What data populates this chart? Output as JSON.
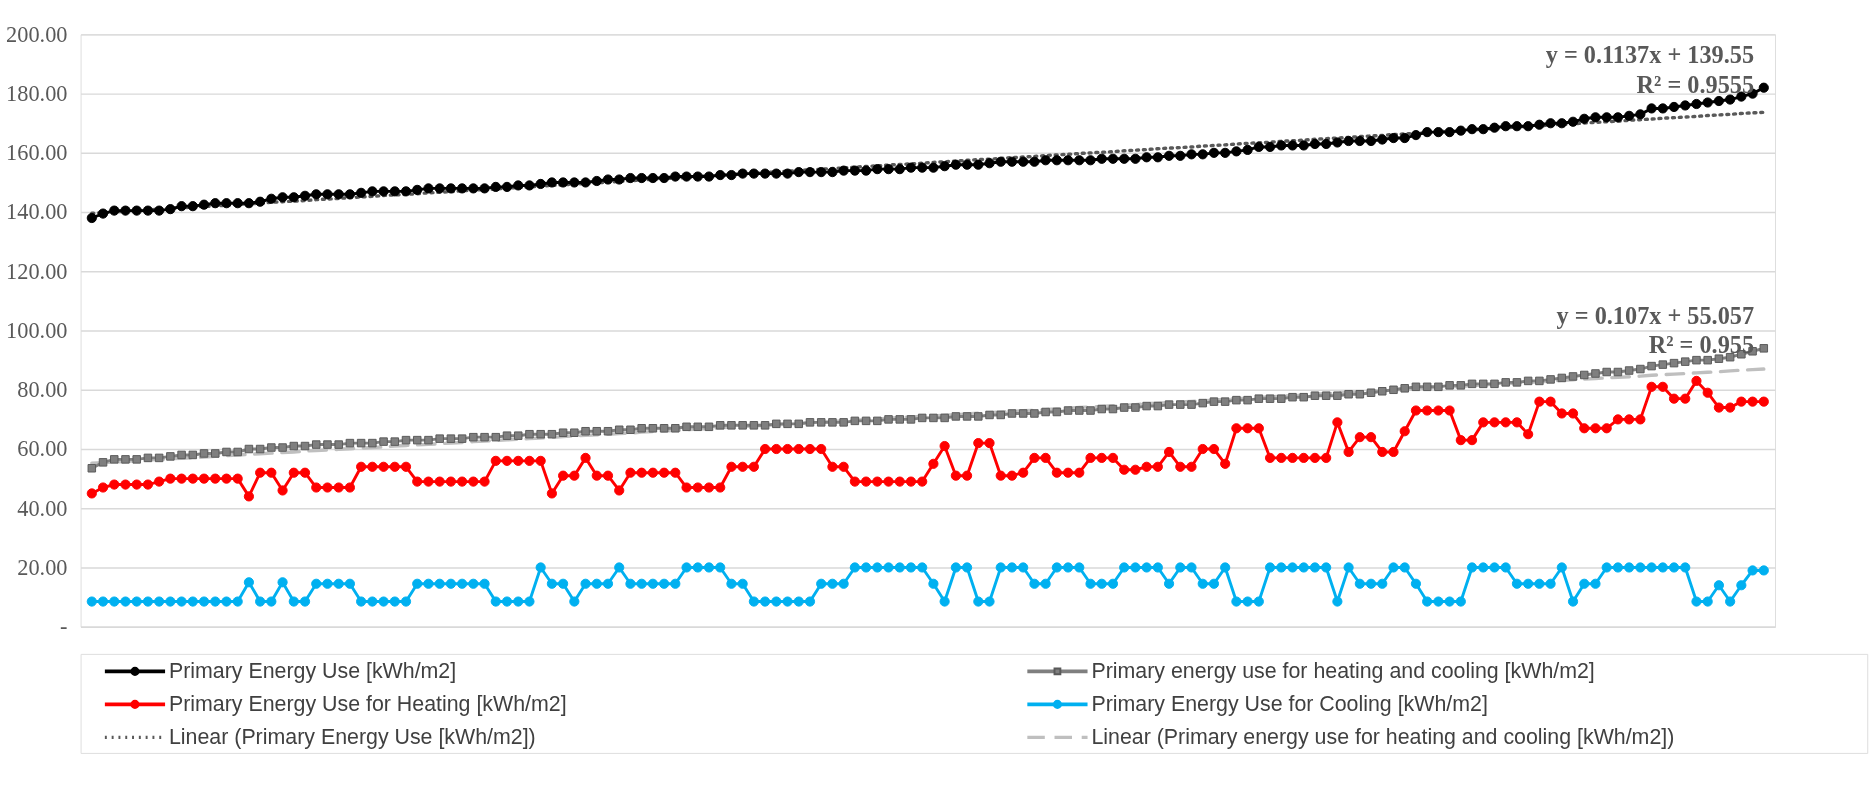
{
  "chart_data": {
    "type": "line",
    "categories": [
      null,
      null,
      null,
      null,
      null,
      null,
      null,
      null,
      null,
      null,
      null,
      null,
      null,
      null,
      null,
      null,
      null,
      null,
      null,
      null,
      null,
      null,
      null,
      null,
      null,
      null,
      null,
      null,
      null,
      null,
      null,
      null,
      null,
      null,
      null,
      null,
      null,
      null,
      null,
      null,
      null,
      null,
      null,
      null,
      null,
      null,
      null,
      null,
      null,
      null,
      null,
      null,
      null,
      null,
      null,
      null,
      null,
      null,
      null,
      null,
      null,
      null,
      null,
      null,
      null,
      null,
      null,
      null,
      null,
      null,
      null,
      null,
      null,
      null,
      null,
      null,
      null,
      null,
      null,
      null,
      null,
      null,
      null,
      null,
      null,
      null,
      null,
      null,
      null,
      null,
      null,
      null,
      null,
      null,
      null,
      null,
      null,
      null,
      null,
      null,
      null,
      null,
      null,
      null,
      null,
      null,
      null,
      null,
      null,
      null,
      null,
      null,
      null,
      null,
      null,
      null,
      null,
      null,
      null,
      null,
      null,
      null,
      null,
      null,
      null,
      null,
      null,
      null,
      null,
      null,
      null,
      null,
      null,
      null,
      null,
      null,
      null,
      null,
      null,
      null,
      null,
      null,
      null,
      null,
      null,
      null,
      null,
      null,
      null,
      null
    ],
    "ylim": [
      0,
      200
    ],
    "yticks": [
      {
        "value": 0,
        "label": "-"
      },
      {
        "value": 20,
        "label": "20.00"
      },
      {
        "value": 40,
        "label": "40.00"
      },
      {
        "value": 60,
        "label": "60.00"
      },
      {
        "value": 80,
        "label": "80.00"
      },
      {
        "value": 100,
        "label": "100.00"
      },
      {
        "value": 120,
        "label": "120.00"
      },
      {
        "value": 140,
        "label": "140.00"
      },
      {
        "value": 160,
        "label": "160.00"
      },
      {
        "value": 180,
        "label": "180.00"
      },
      {
        "value": 200,
        "label": "200.00"
      }
    ],
    "grid": "y",
    "legend": "bottom",
    "tick_labels": "y",
    "series": [
      {
        "name": "Primary Energy Use [kWh/m2]",
        "color": "#000000",
        "marker": "circle",
        "values": [
          138,
          139.5,
          140.5,
          140.5,
          140.5,
          140.5,
          140.5,
          141,
          142,
          142,
          142.5,
          143,
          143,
          143,
          143,
          143.5,
          144.5,
          145,
          145,
          145.5,
          146,
          146,
          146,
          146,
          146.5,
          147,
          147,
          147,
          147,
          147.5,
          148,
          148,
          148,
          148,
          148,
          148,
          148.5,
          148.5,
          149,
          149,
          149.5,
          150,
          150,
          150,
          150,
          150.5,
          151,
          151,
          151.5,
          151.5,
          151.5,
          151.5,
          152,
          152,
          152,
          152,
          152.5,
          152.5,
          153,
          153,
          153,
          153,
          153,
          153.5,
          153.5,
          153.5,
          153.5,
          154,
          154,
          154,
          154.5,
          154.5,
          154.5,
          155,
          155,
          155,
          155.5,
          156,
          156,
          156,
          156.5,
          157,
          157,
          157,
          157,
          157.5,
          157.5,
          157.5,
          157.5,
          157.5,
          158,
          158,
          158,
          158,
          158.5,
          158.5,
          159,
          159,
          159.5,
          159.5,
          160,
          160,
          160.5,
          161,
          162,
          162,
          162.5,
          162.5,
          162.5,
          163,
          163,
          163.5,
          164,
          164,
          164,
          164.5,
          165,
          165,
          166,
          167,
          167,
          167,
          167.5,
          168,
          168,
          168.5,
          169,
          169,
          169,
          169.5,
          170,
          170,
          170.5,
          171.5,
          172,
          172,
          172,
          172.5,
          173,
          175,
          175,
          175.5,
          176,
          176.5,
          177,
          177.5,
          178,
          179,
          180,
          182
        ]
      },
      {
        "name": "Primary energy use for heating and cooling [kWh/m2]",
        "color": "#7f7f7f",
        "marker": "square",
        "values": [
          53.5,
          55.5,
          56.5,
          56.5,
          56.5,
          57,
          57,
          57.5,
          58,
          58,
          58.5,
          58.5,
          59,
          59,
          60,
          60,
          60.5,
          60.5,
          61,
          61,
          61.5,
          61.5,
          61.5,
          62,
          62,
          62,
          62.5,
          62.5,
          63,
          63,
          63,
          63.5,
          63.5,
          63.5,
          64,
          64,
          64,
          64.5,
          64.5,
          65,
          65,
          65,
          65.5,
          65.5,
          66,
          66,
          66,
          66.5,
          66.5,
          67,
          67,
          67,
          67,
          67.5,
          67.5,
          67.5,
          68,
          68,
          68,
          68,
          68,
          68.5,
          68.5,
          68.5,
          69,
          69,
          69,
          69,
          69.5,
          69.5,
          69.5,
          70,
          70,
          70,
          70.5,
          70.5,
          70.5,
          71,
          71,
          71,
          71.5,
          71.5,
          72,
          72,
          72,
          72.5,
          72.5,
          73,
          73,
          73,
          73.5,
          73.5,
          74,
          74,
          74.5,
          74.5,
          75,
          75,
          75,
          75.5,
          76,
          76,
          76.5,
          76.5,
          77,
          77,
          77,
          77.5,
          77.5,
          78,
          78,
          78,
          78.5,
          78.5,
          79,
          79.5,
          80,
          80.5,
          81,
          81,
          81,
          81.5,
          81.5,
          82,
          82,
          82,
          82.5,
          82.5,
          83,
          83,
          83.5,
          84,
          84.5,
          85,
          85.5,
          86,
          86,
          86.5,
          87,
          88,
          88.5,
          89,
          89.5,
          90,
          90,
          90.5,
          91,
          92,
          93,
          94
        ]
      },
      {
        "name": "Primary Energy Use for Heating [kWh/m2]",
        "color": "#ff0000",
        "marker": "circle",
        "values": [
          45,
          47,
          48,
          48,
          48,
          48,
          49,
          50,
          50,
          50,
          50,
          50,
          50,
          50,
          44,
          52,
          52,
          46,
          52,
          52,
          47,
          47,
          47,
          47,
          54,
          54,
          54,
          54,
          54,
          49,
          49,
          49,
          49,
          49,
          49,
          49,
          56,
          56,
          56,
          56,
          56,
          45,
          51,
          51,
          57,
          51,
          51,
          46,
          52,
          52,
          52,
          52,
          52,
          47,
          47,
          47,
          47,
          54,
          54,
          54,
          60,
          60,
          60,
          60,
          60,
          60,
          54,
          54,
          49,
          49,
          49,
          49,
          49,
          49,
          49,
          55,
          61,
          51,
          51,
          62,
          62,
          51,
          51,
          52,
          57,
          57,
          52,
          52,
          52,
          57,
          57,
          57,
          53,
          53,
          54,
          54,
          59,
          54,
          54,
          60,
          60,
          55,
          67,
          67,
          67,
          57,
          57,
          57,
          57,
          57,
          57,
          69,
          59,
          64,
          64,
          59,
          59,
          66,
          73,
          73,
          73,
          73,
          63,
          63,
          69,
          69,
          69,
          69,
          65,
          76,
          76,
          72,
          72,
          67,
          67,
          67,
          70,
          70,
          70,
          81,
          81,
          77,
          77,
          83,
          79,
          74,
          74,
          76,
          76,
          76
        ]
      },
      {
        "name": "Primary Energy Use for Cooling [kWh/m2]",
        "color": "#00b0f0",
        "marker": "circle",
        "values": [
          8.5,
          8.5,
          8.5,
          8.5,
          8.5,
          8.5,
          8.5,
          8.5,
          8.5,
          8.5,
          8.5,
          8.5,
          8.5,
          8.5,
          15,
          8.5,
          8.5,
          15,
          8.5,
          8.5,
          14.5,
          14.5,
          14.5,
          14.5,
          8.5,
          8.5,
          8.5,
          8.5,
          8.5,
          14.5,
          14.5,
          14.5,
          14.5,
          14.5,
          14.5,
          14.5,
          8.5,
          8.5,
          8.5,
          8.5,
          20,
          14.5,
          14.5,
          8.5,
          14.5,
          14.5,
          14.5,
          20,
          14.5,
          14.5,
          14.5,
          14.5,
          14.5,
          20,
          20,
          20,
          20,
          14.5,
          14.5,
          8.5,
          8.5,
          8.5,
          8.5,
          8.5,
          8.5,
          14.5,
          14.5,
          14.5,
          20,
          20,
          20,
          20,
          20,
          20,
          20,
          14.5,
          8.5,
          20,
          20,
          8.5,
          8.5,
          20,
          20,
          20,
          14.5,
          14.5,
          20,
          20,
          20,
          14.5,
          14.5,
          14.5,
          20,
          20,
          20,
          20,
          14.5,
          20,
          20,
          14.5,
          14.5,
          20,
          8.5,
          8.5,
          8.5,
          20,
          20,
          20,
          20,
          20,
          20,
          8.5,
          20,
          14.5,
          14.5,
          14.5,
          20,
          20,
          14.5,
          8.5,
          8.5,
          8.5,
          8.5,
          20,
          20,
          20,
          20,
          14.5,
          14.5,
          14.5,
          14.5,
          20,
          8.5,
          14.5,
          14.5,
          20,
          20,
          20,
          20,
          20,
          20,
          20,
          20,
          8.5,
          8.5,
          14,
          8.5,
          14,
          19,
          19
        ]
      },
      {
        "name": "Linear (Primary Energy Use [kWh/m2])",
        "color": "#595959",
        "marker": "none",
        "line_style": "dotted",
        "values": [
          139.6,
          139.8,
          140.1,
          140.3,
          140.5,
          140.7,
          141.0,
          141.2,
          141.4,
          141.7,
          141.9,
          142.1,
          142.3,
          142.6,
          142.8,
          143.0,
          143.3,
          143.5,
          143.7,
          143.9,
          144.2,
          144.4,
          144.6,
          144.9,
          145.1,
          145.3,
          145.6,
          145.8,
          146.0,
          146.2,
          146.5,
          146.7,
          146.9,
          147.2,
          147.4,
          147.6,
          147.8,
          148.1,
          148.3,
          148.5,
          148.8,
          149.0,
          149.2,
          149.4,
          149.7,
          149.9,
          150.1,
          150.4,
          150.6,
          150.8,
          151.1,
          151.3,
          151.5,
          151.7,
          152.0,
          152.2,
          152.4,
          152.7,
          152.9,
          153.1,
          153.3,
          153.6,
          153.8,
          154.0,
          154.3,
          154.5,
          154.7,
          154.9,
          155.2,
          155.4,
          155.6,
          155.9,
          156.1,
          156.3,
          156.5,
          156.8,
          157.0,
          157.2,
          157.5,
          157.7,
          157.9,
          158.1,
          158.4,
          158.6,
          158.8,
          159.1,
          159.3,
          159.5,
          159.8,
          160.0,
          160.2,
          160.4,
          160.7,
          160.9,
          161.1,
          161.4,
          161.6,
          161.8,
          162.0,
          162.3,
          162.5,
          162.7,
          163.0,
          163.2,
          163.4,
          163.6,
          163.9,
          164.1,
          164.3,
          164.6,
          164.8,
          165.0,
          165.2,
          165.5,
          165.7,
          165.9,
          166.2,
          166.4,
          166.6,
          166.9,
          167.1,
          167.3,
          167.5,
          167.8,
          168.0,
          168.2,
          168.5,
          168.7,
          168.9,
          169.1,
          169.4,
          169.6,
          169.8,
          170.1,
          170.3,
          170.5,
          170.7,
          171.0,
          171.2,
          171.4,
          171.7,
          171.9,
          172.1,
          172.3,
          172.6,
          172.8,
          173.0,
          173.3,
          173.5,
          173.7
        ]
      },
      {
        "name": "Linear (Primary energy use for heating and cooling [kWh/m2])",
        "color": "#bfbfbf",
        "marker": "none",
        "line_style": "dashed",
        "values": [
          55.2,
          55.4,
          55.6,
          55.8,
          56.1,
          56.3,
          56.5,
          56.7,
          56.9,
          57.1,
          57.3,
          57.5,
          57.8,
          58.0,
          58.2,
          58.4,
          58.6,
          58.8,
          59.0,
          59.3,
          59.5,
          59.7,
          59.9,
          60.1,
          60.3,
          60.5,
          60.7,
          61.0,
          61.2,
          61.4,
          61.6,
          61.8,
          62.0,
          62.2,
          62.5,
          62.7,
          62.9,
          63.1,
          63.3,
          63.5,
          63.7,
          63.9,
          64.2,
          64.4,
          64.6,
          64.8,
          65.0,
          65.2,
          65.4,
          65.7,
          65.9,
          66.1,
          66.3,
          66.5,
          66.7,
          66.9,
          67.2,
          67.4,
          67.6,
          67.8,
          68.0,
          68.2,
          68.4,
          68.6,
          68.9,
          69.1,
          69.3,
          69.5,
          69.7,
          69.9,
          70.1,
          70.4,
          70.6,
          70.8,
          71.0,
          71.2,
          71.4,
          71.6,
          71.8,
          72.1,
          72.3,
          72.5,
          72.7,
          72.9,
          73.1,
          73.3,
          73.6,
          73.8,
          74.0,
          74.2,
          74.4,
          74.6,
          74.8,
          75.0,
          75.3,
          75.5,
          75.7,
          75.9,
          76.1,
          76.3,
          76.5,
          76.8,
          77.0,
          77.2,
          77.4,
          77.6,
          77.8,
          78.0,
          78.2,
          78.5,
          78.7,
          78.9,
          79.1,
          79.3,
          79.5,
          79.7,
          80.0,
          80.2,
          80.4,
          80.6,
          80.8,
          81.0,
          81.2,
          81.4,
          81.7,
          81.9,
          82.1,
          82.3,
          82.5,
          82.7,
          82.9,
          83.2,
          83.4,
          83.6,
          83.8,
          84.0,
          84.2,
          84.4,
          84.6,
          84.9,
          85.1,
          85.3,
          85.5,
          85.7,
          85.9,
          86.1,
          86.4,
          86.6,
          86.8,
          87.0
        ]
      }
    ],
    "annotations": [
      "y = 0.1137x + 139.55\nR² = 0.9555",
      "y = 0.107x + 55.057\nR² = 0.955"
    ]
  }
}
